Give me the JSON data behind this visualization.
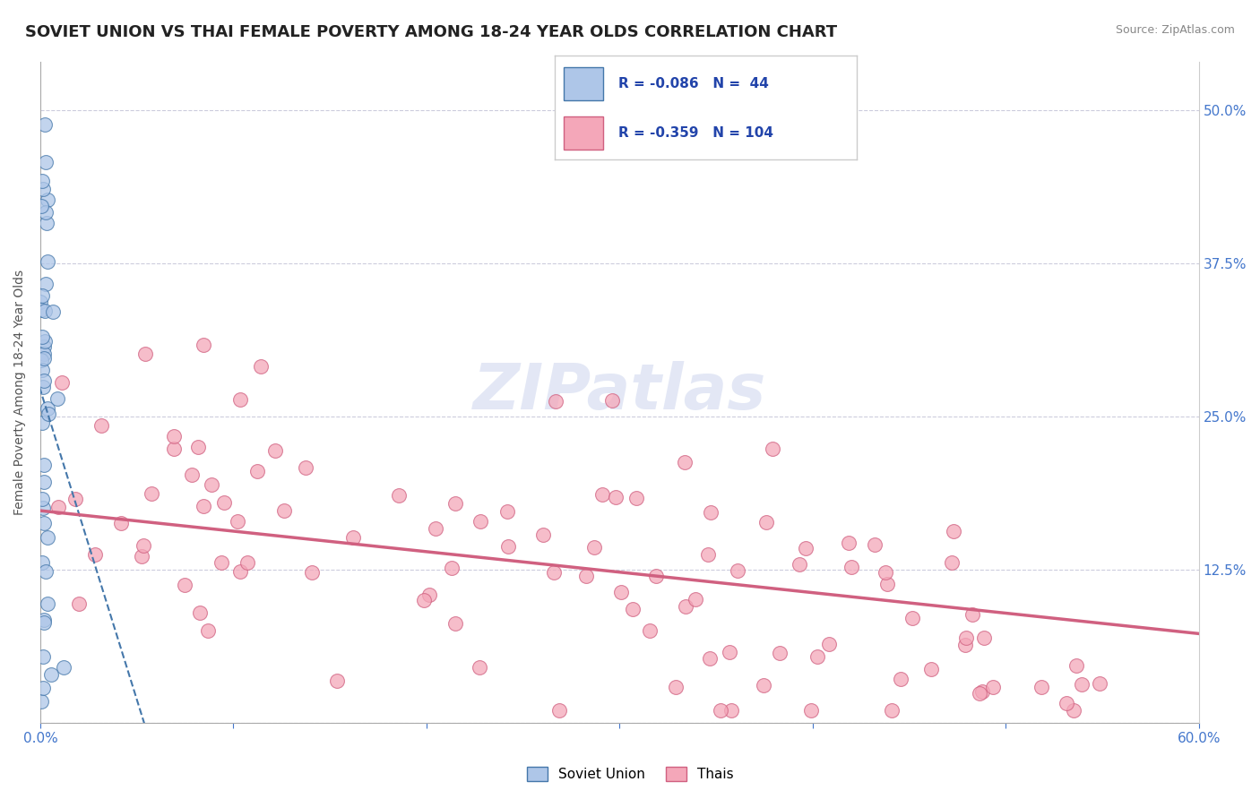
{
  "title": "SOVIET UNION VS THAI FEMALE POVERTY AMONG 18-24 YEAR OLDS CORRELATION CHART",
  "source": "Source: ZipAtlas.com",
  "ylabel": "Female Poverty Among 18-24 Year Olds",
  "xlim": [
    0.0,
    0.6
  ],
  "ylim": [
    0.0,
    0.54
  ],
  "xticks": [
    0.0,
    0.1,
    0.2,
    0.3,
    0.4,
    0.5,
    0.6
  ],
  "xticklabels": [
    "0.0%",
    "",
    "",
    "",
    "",
    "",
    "60.0%"
  ],
  "yticks": [
    0.0,
    0.125,
    0.25,
    0.375,
    0.5
  ],
  "yticklabels_right": [
    "",
    "12.5%",
    "25.0%",
    "37.5%",
    "50.0%"
  ],
  "soviet_R": -0.086,
  "soviet_N": 44,
  "thai_R": -0.359,
  "thai_N": 104,
  "soviet_color": "#aec6e8",
  "thai_color": "#f4a7b9",
  "soviet_line_color": "#4477aa",
  "thai_line_color": "#d06080",
  "background_color": "#ffffff",
  "title_fontsize": 13,
  "label_fontsize": 10,
  "tick_fontsize": 11,
  "tick_color": "#4477cc"
}
